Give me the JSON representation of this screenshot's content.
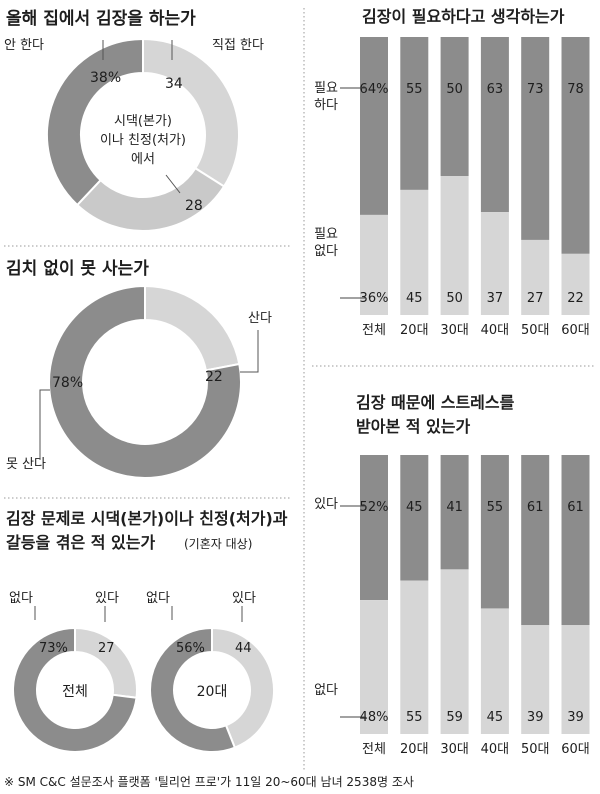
{
  "colors": {
    "dark": "#8c8c8c",
    "light": "#d6d6d6",
    "text": "#1e1e1e"
  },
  "footnote": "※ SM C&C 설문조사 플랫폼 '틸리언 프로'가 11일 20~60대 남녀 2538명 조사",
  "chart_data": [
    {
      "type": "pie",
      "title": "올해 집에서 김장을 하는가",
      "slices": [
        {
          "label": "직접 한다",
          "value": 34,
          "shade": "light",
          "value_label": "34"
        },
        {
          "label": "시댁(본가)이나 친정(처가)에서 한다",
          "value": 28,
          "shade": "light2",
          "value_label": "28"
        },
        {
          "label": "안 한다",
          "value": 38,
          "shade": "dark",
          "value_label": "38%"
        }
      ]
    },
    {
      "type": "pie",
      "title": "김치 없이 못 사는가",
      "slices": [
        {
          "label": "산다",
          "value": 22,
          "shade": "light",
          "value_label": "22"
        },
        {
          "label": "못 산다",
          "value": 78,
          "shade": "dark",
          "value_label": "78%"
        }
      ]
    },
    {
      "type": "pie",
      "title": "김장 문제로 시댁(본가)이나 친정(처가)과 갈등을 겪은 적 있는가",
      "subtitle": "(기혼자 대상)",
      "charts": [
        {
          "center_label": "전체",
          "slices": [
            {
              "label": "있다",
              "value": 27,
              "shade": "light",
              "value_label": "27"
            },
            {
              "label": "없다",
              "value": 73,
              "shade": "dark",
              "value_label": "73%"
            }
          ]
        },
        {
          "center_label": "20대",
          "slices": [
            {
              "label": "있다",
              "value": 44,
              "shade": "light",
              "value_label": "44"
            },
            {
              "label": "없다",
              "value": 56,
              "shade": "dark",
              "value_label": "56%"
            }
          ]
        }
      ]
    },
    {
      "type": "bar",
      "stacked": true,
      "title": "김장이 필요하다고 생각하는가",
      "categories": [
        "전체",
        "20대",
        "30대",
        "40대",
        "50대",
        "60대"
      ],
      "series": [
        {
          "name": "필요 하다",
          "values": [
            64,
            55,
            50,
            63,
            73,
            78
          ],
          "labels": [
            "64%",
            "55",
            "50",
            "63",
            "73",
            "78"
          ]
        },
        {
          "name": "필요 없다",
          "values": [
            36,
            45,
            50,
            37,
            27,
            22
          ],
          "labels": [
            "36%",
            "45",
            "50",
            "37",
            "27",
            "22"
          ]
        }
      ],
      "ylim": [
        0,
        100
      ]
    },
    {
      "type": "bar",
      "stacked": true,
      "title": "김장 때문에 스트레스를 받아본 적 있는가",
      "categories": [
        "전체",
        "20대",
        "30대",
        "40대",
        "50대",
        "60대"
      ],
      "series": [
        {
          "name": "있다",
          "values": [
            52,
            45,
            41,
            55,
            61,
            61
          ],
          "labels": [
            "52%",
            "45",
            "41",
            "55",
            "61",
            "61"
          ]
        },
        {
          "name": "없다",
          "values": [
            48,
            55,
            59,
            45,
            39,
            39
          ],
          "labels": [
            "48%",
            "55",
            "59",
            "45",
            "39",
            "39"
          ]
        }
      ],
      "ylim": [
        0,
        100
      ]
    }
  ]
}
